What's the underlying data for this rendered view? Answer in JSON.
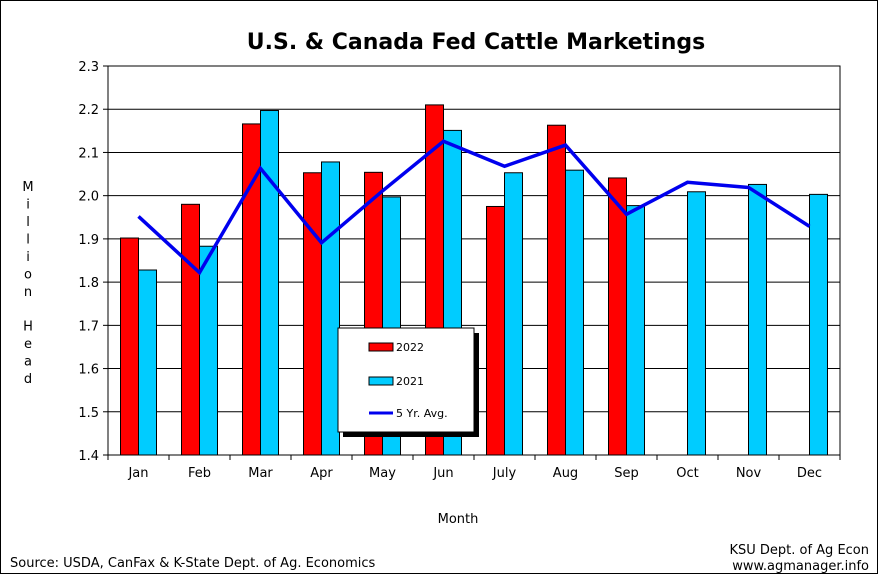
{
  "chart_data": {
    "type": "bar",
    "title": "U.S. & Canada Fed Cattle Marketings",
    "xlabel": "Month",
    "ylabel": "Million Head",
    "ylim": [
      1.4,
      2.3
    ],
    "yticks": [
      "1.4",
      "1.5",
      "1.6",
      "1.7",
      "1.8",
      "1.9",
      "2.0",
      "2.1",
      "2.2",
      "2.3"
    ],
    "categories": [
      "Jan",
      "Feb",
      "Mar",
      "Apr",
      "May",
      "Jun",
      "July",
      "Aug",
      "Sep",
      "Oct",
      "Nov",
      "Dec"
    ],
    "grid": "horizontal",
    "legend_position": "center",
    "series": [
      {
        "name": "2022",
        "type": "bar",
        "color": "#ff0000",
        "values": [
          1.902,
          1.98,
          2.166,
          2.053,
          2.054,
          2.21,
          1.975,
          2.163,
          2.041,
          null,
          null,
          null
        ]
      },
      {
        "name": "2021",
        "type": "bar",
        "color": "#00ccff",
        "values": [
          1.828,
          1.883,
          2.197,
          2.078,
          1.997,
          2.151,
          2.053,
          2.059,
          1.977,
          2.009,
          2.026,
          2.003
        ]
      },
      {
        "name": "5 Yr. Avg.",
        "type": "line",
        "color": "#0000ee",
        "values": [
          1.952,
          1.822,
          2.063,
          1.891,
          2.011,
          2.126,
          2.068,
          2.117,
          1.957,
          2.031,
          2.019,
          1.929
        ]
      }
    ]
  },
  "footer": {
    "source": "Source: USDA, CanFax & K-State Dept. of  Ag. Economics",
    "credit_line1": "KSU Dept. of Ag Econ",
    "credit_line2": "www.agmanager.info"
  }
}
